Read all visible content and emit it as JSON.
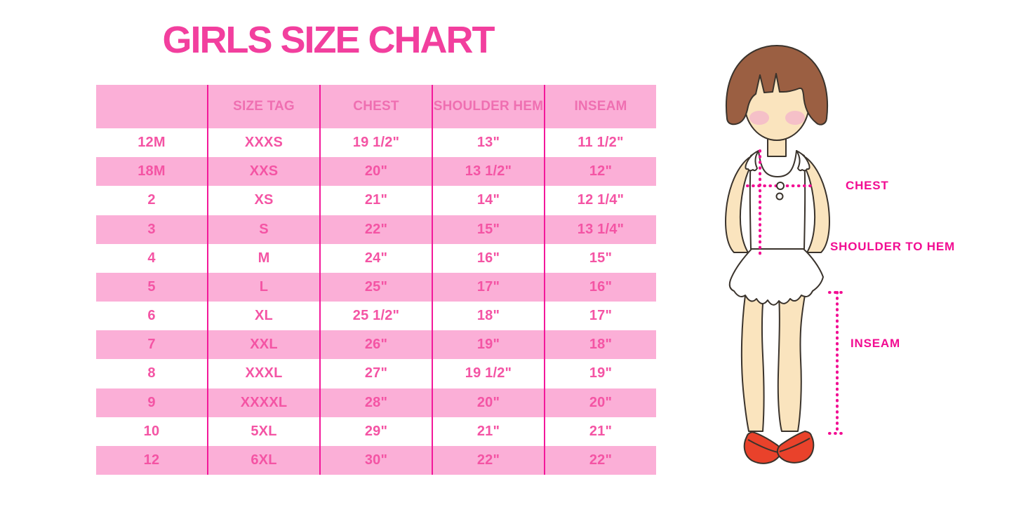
{
  "title": "GIRLS SIZE CHART",
  "chart_data": {
    "type": "table",
    "title": "GIRLS SIZE CHART",
    "columns": [
      "",
      "SIZE TAG",
      "CHEST",
      "SHOULDER HEM",
      "INSEAM"
    ],
    "rows": [
      [
        "12M",
        "XXXS",
        "19 1/2\"",
        "13\"",
        "11 1/2\""
      ],
      [
        "18M",
        "XXS",
        "20\"",
        "13 1/2\"",
        "12\""
      ],
      [
        "2",
        "XS",
        "21\"",
        "14\"",
        "12 1/4\""
      ],
      [
        "3",
        "S",
        "22\"",
        "15\"",
        "13 1/4\""
      ],
      [
        "4",
        "M",
        "24\"",
        "16\"",
        "15\""
      ],
      [
        "5",
        "L",
        "25\"",
        "17\"",
        "16\""
      ],
      [
        "6",
        "XL",
        "25 1/2\"",
        "18\"",
        "17\""
      ],
      [
        "7",
        "XXL",
        "26\"",
        "19\"",
        "18\""
      ],
      [
        "8",
        "XXXL",
        "27\"",
        "19 1/2\"",
        "19\""
      ],
      [
        "9",
        "XXXXL",
        "28\"",
        "20\"",
        "20\""
      ],
      [
        "10",
        "5XL",
        "29\"",
        "21\"",
        "21\""
      ],
      [
        "12",
        "6XL",
        "30\"",
        "22\"",
        "22\""
      ]
    ],
    "row_striping": "alternating white / pink starting with white",
    "legend_position": "none",
    "grid": "vertical magenta column separators only"
  },
  "figure": {
    "chest_label": "CHEST",
    "shoulder_to_hem_label": "SHOULDER TO HEM",
    "inseam_label": "INSEAM"
  },
  "colors": {
    "title_pink": "#F23F9E",
    "stripe_pink": "#FBAFD7",
    "cell_text_pink": "#F454A4",
    "header_text_pink": "#EF6FB1",
    "grid_line_pink": "#F3189A",
    "measurement_magenta": "#F20C92",
    "hair_brown": "#9B5F42",
    "skin_tone": "#FAE4BE",
    "blush_pink": "#F4B6CB",
    "shoe_red": "#E9422B",
    "garment_white": "#FFFFFF",
    "outline_dark": "#3A332C"
  }
}
